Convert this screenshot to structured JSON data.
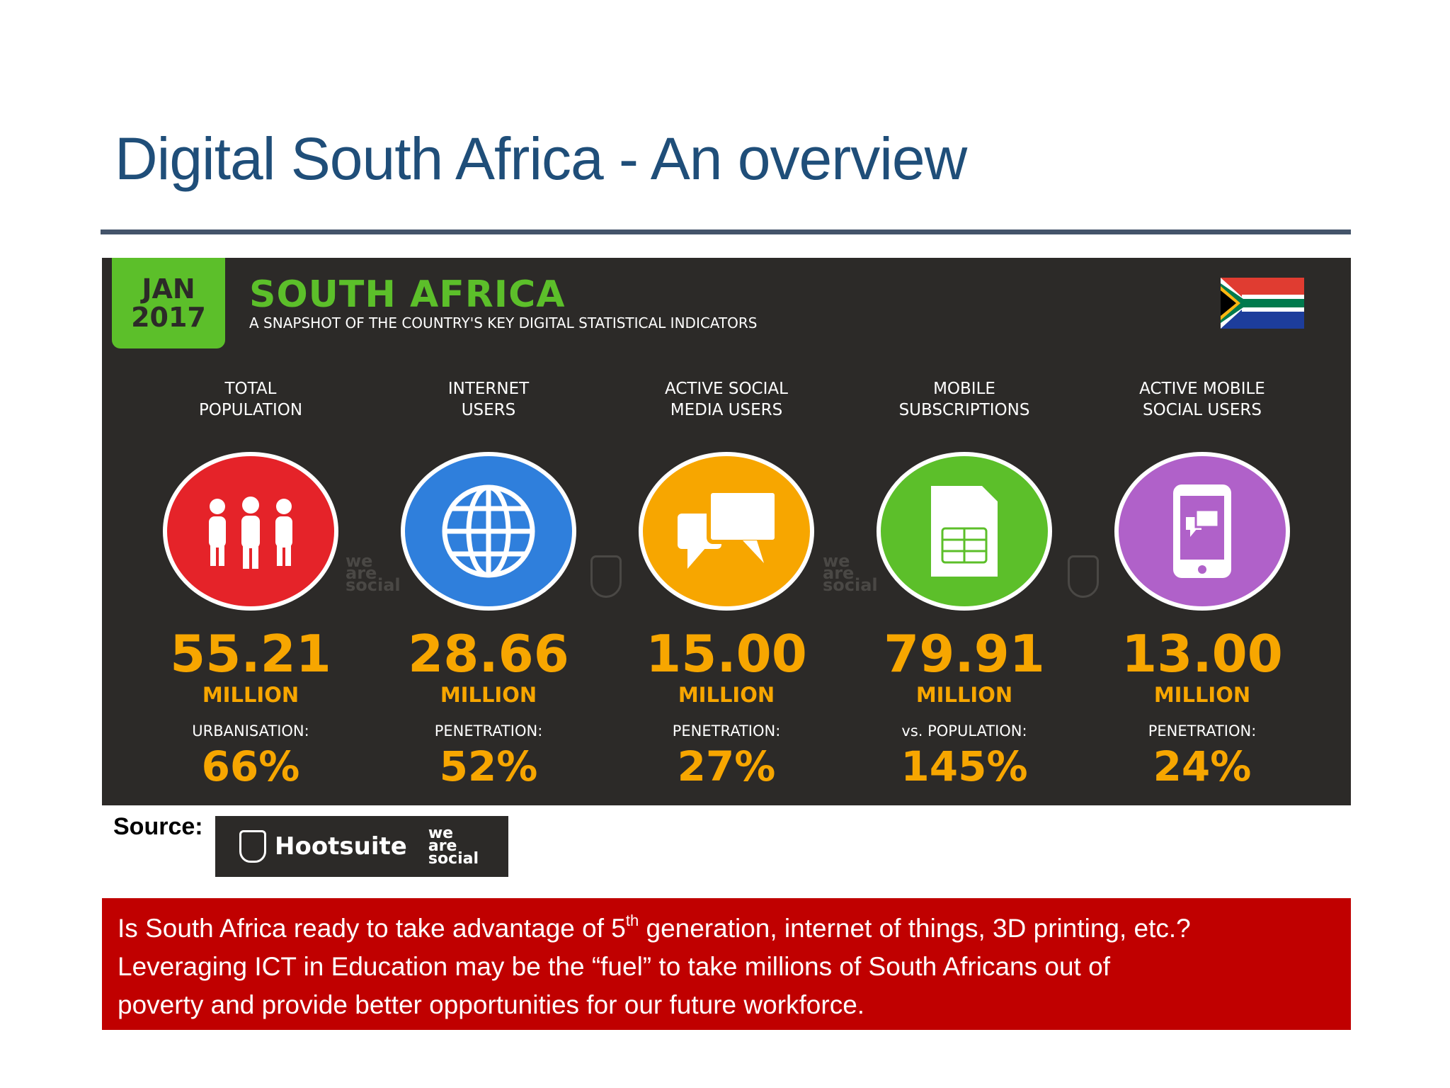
{
  "slide": {
    "title": "Digital South Africa - An overview"
  },
  "infographic": {
    "date_month": "JAN",
    "date_year": "2017",
    "country": "SOUTH AFRICA",
    "subtitle": "A SNAPSHOT OF THE COUNTRY'S KEY DIGITAL STATISTICAL INDICATORS",
    "flag_icon": "south-africa-flag-icon",
    "watermark_text": [
      "we",
      "are",
      "social"
    ],
    "stats": [
      {
        "label_line1": "TOTAL",
        "label_line2": "POPULATION",
        "value": "55.21",
        "unit": "MILLION",
        "sublabel": "URBANISATION:",
        "pct": "66%",
        "color": "#e52329",
        "icon": "people-icon"
      },
      {
        "label_line1": "INTERNET",
        "label_line2": "USERS",
        "value": "28.66",
        "unit": "MILLION",
        "sublabel": "PENETRATION:",
        "pct": "52%",
        "color": "#2f7fdc",
        "icon": "globe-icon"
      },
      {
        "label_line1": "ACTIVE SOCIAL",
        "label_line2": "MEDIA USERS",
        "value": "15.00",
        "unit": "MILLION",
        "sublabel": "PENETRATION:",
        "pct": "27%",
        "color": "#f7a600",
        "icon": "chat-bubbles-icon"
      },
      {
        "label_line1": "MOBILE",
        "label_line2": "SUBSCRIPTIONS",
        "value": "79.91",
        "unit": "MILLION",
        "sublabel": "vs. POPULATION:",
        "pct": "145%",
        "color": "#5cbf2a",
        "icon": "sim-card-icon"
      },
      {
        "label_line1": "ACTIVE MOBILE",
        "label_line2": "SOCIAL USERS",
        "value": "13.00",
        "unit": "MILLION",
        "sublabel": "PENETRATION:",
        "pct": "24%",
        "color": "#b061c9",
        "icon": "mobile-chat-icon"
      }
    ]
  },
  "source": {
    "label": "Source:",
    "logo_hootsuite": "Hootsuite",
    "logo_was": [
      "we",
      "are",
      "social"
    ]
  },
  "callout": {
    "part1": "Is South Africa ready to take advantage of 5",
    "sup": "th",
    "part2": " generation, internet of things, 3D printing, etc.?",
    "line2": "Leveraging ICT in Education may be the “fuel” to take millions of South Africans out of",
    "line3": "poverty and provide better opportunities for our future workforce."
  },
  "colors": {
    "title": "#1f4e79",
    "rule": "#44546a",
    "panel": "#2c2a28",
    "accent_green": "#5cbf2a",
    "accent_orange": "#f7a600",
    "callout": "#c00000"
  }
}
